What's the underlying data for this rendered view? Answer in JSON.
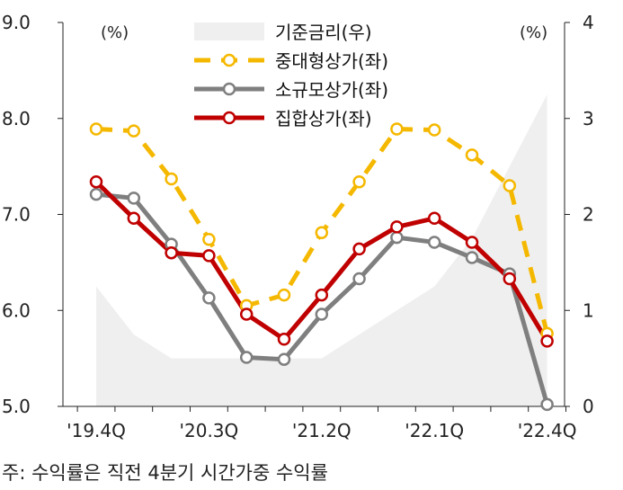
{
  "chart_data": {
    "type": "line",
    "x": [
      "'19.4Q",
      "'20.1Q",
      "'20.2Q",
      "'20.3Q",
      "'20.4Q",
      "'21.1Q",
      "'21.2Q",
      "'21.3Q",
      "'21.4Q",
      "'22.1Q",
      "'22.2Q",
      "'22.3Q",
      "'22.4Q"
    ],
    "x_tick_labels": [
      "'19.4Q",
      "'20.3Q",
      "'21.2Q",
      "'22.1Q",
      "'22.4Q"
    ],
    "y_left": {
      "ticks": [
        "9.0",
        "8.0",
        "7.0",
        "6.0",
        "5.0"
      ],
      "unit": "(%)",
      "ylim": [
        5.0,
        9.0
      ]
    },
    "y_right": {
      "ticks": [
        "4",
        "3",
        "2",
        "1",
        "0"
      ],
      "unit": "(%)",
      "ylim": [
        0,
        4
      ]
    },
    "base_rate": {
      "name": "기준금리(우)",
      "axis": "right",
      "color": "#efefef",
      "steps": [
        [
          0.0,
          1.25
        ],
        [
          1.0,
          0.75
        ],
        [
          2.0,
          0.5
        ],
        [
          3.0,
          0.5
        ],
        [
          4.0,
          0.5
        ],
        [
          5.0,
          0.5
        ],
        [
          6.0,
          0.5
        ],
        [
          7.0,
          0.75
        ],
        [
          8.0,
          1.0
        ],
        [
          9.0,
          1.25
        ],
        [
          10.0,
          1.75
        ],
        [
          11.0,
          2.5
        ],
        [
          12.0,
          3.25
        ]
      ]
    },
    "series": [
      {
        "name": "중대형상가(좌)",
        "axis": "left",
        "color": "#f5b800",
        "dashed": true,
        "values": [
          7.89,
          7.87,
          7.37,
          6.74,
          6.05,
          6.16,
          6.81,
          7.34,
          7.89,
          7.88,
          7.62,
          7.3,
          5.76
        ]
      },
      {
        "name": "소규모상가(좌)",
        "axis": "left",
        "color": "#7f7f7f",
        "dashed": false,
        "values": [
          7.21,
          7.17,
          6.69,
          6.13,
          5.51,
          5.49,
          5.96,
          6.33,
          6.76,
          6.71,
          6.55,
          6.38,
          5.02
        ]
      },
      {
        "name": "집합상가(좌)",
        "axis": "left",
        "color": "#c00000",
        "dashed": false,
        "values": [
          7.34,
          6.96,
          6.6,
          6.57,
          5.96,
          5.7,
          6.16,
          6.64,
          6.87,
          6.96,
          6.71,
          6.33,
          5.68
        ]
      }
    ],
    "legend_placement": "top-center",
    "grid": false
  },
  "footnote": "주: 수익률은 직전 4분기 시간가중 수익률"
}
